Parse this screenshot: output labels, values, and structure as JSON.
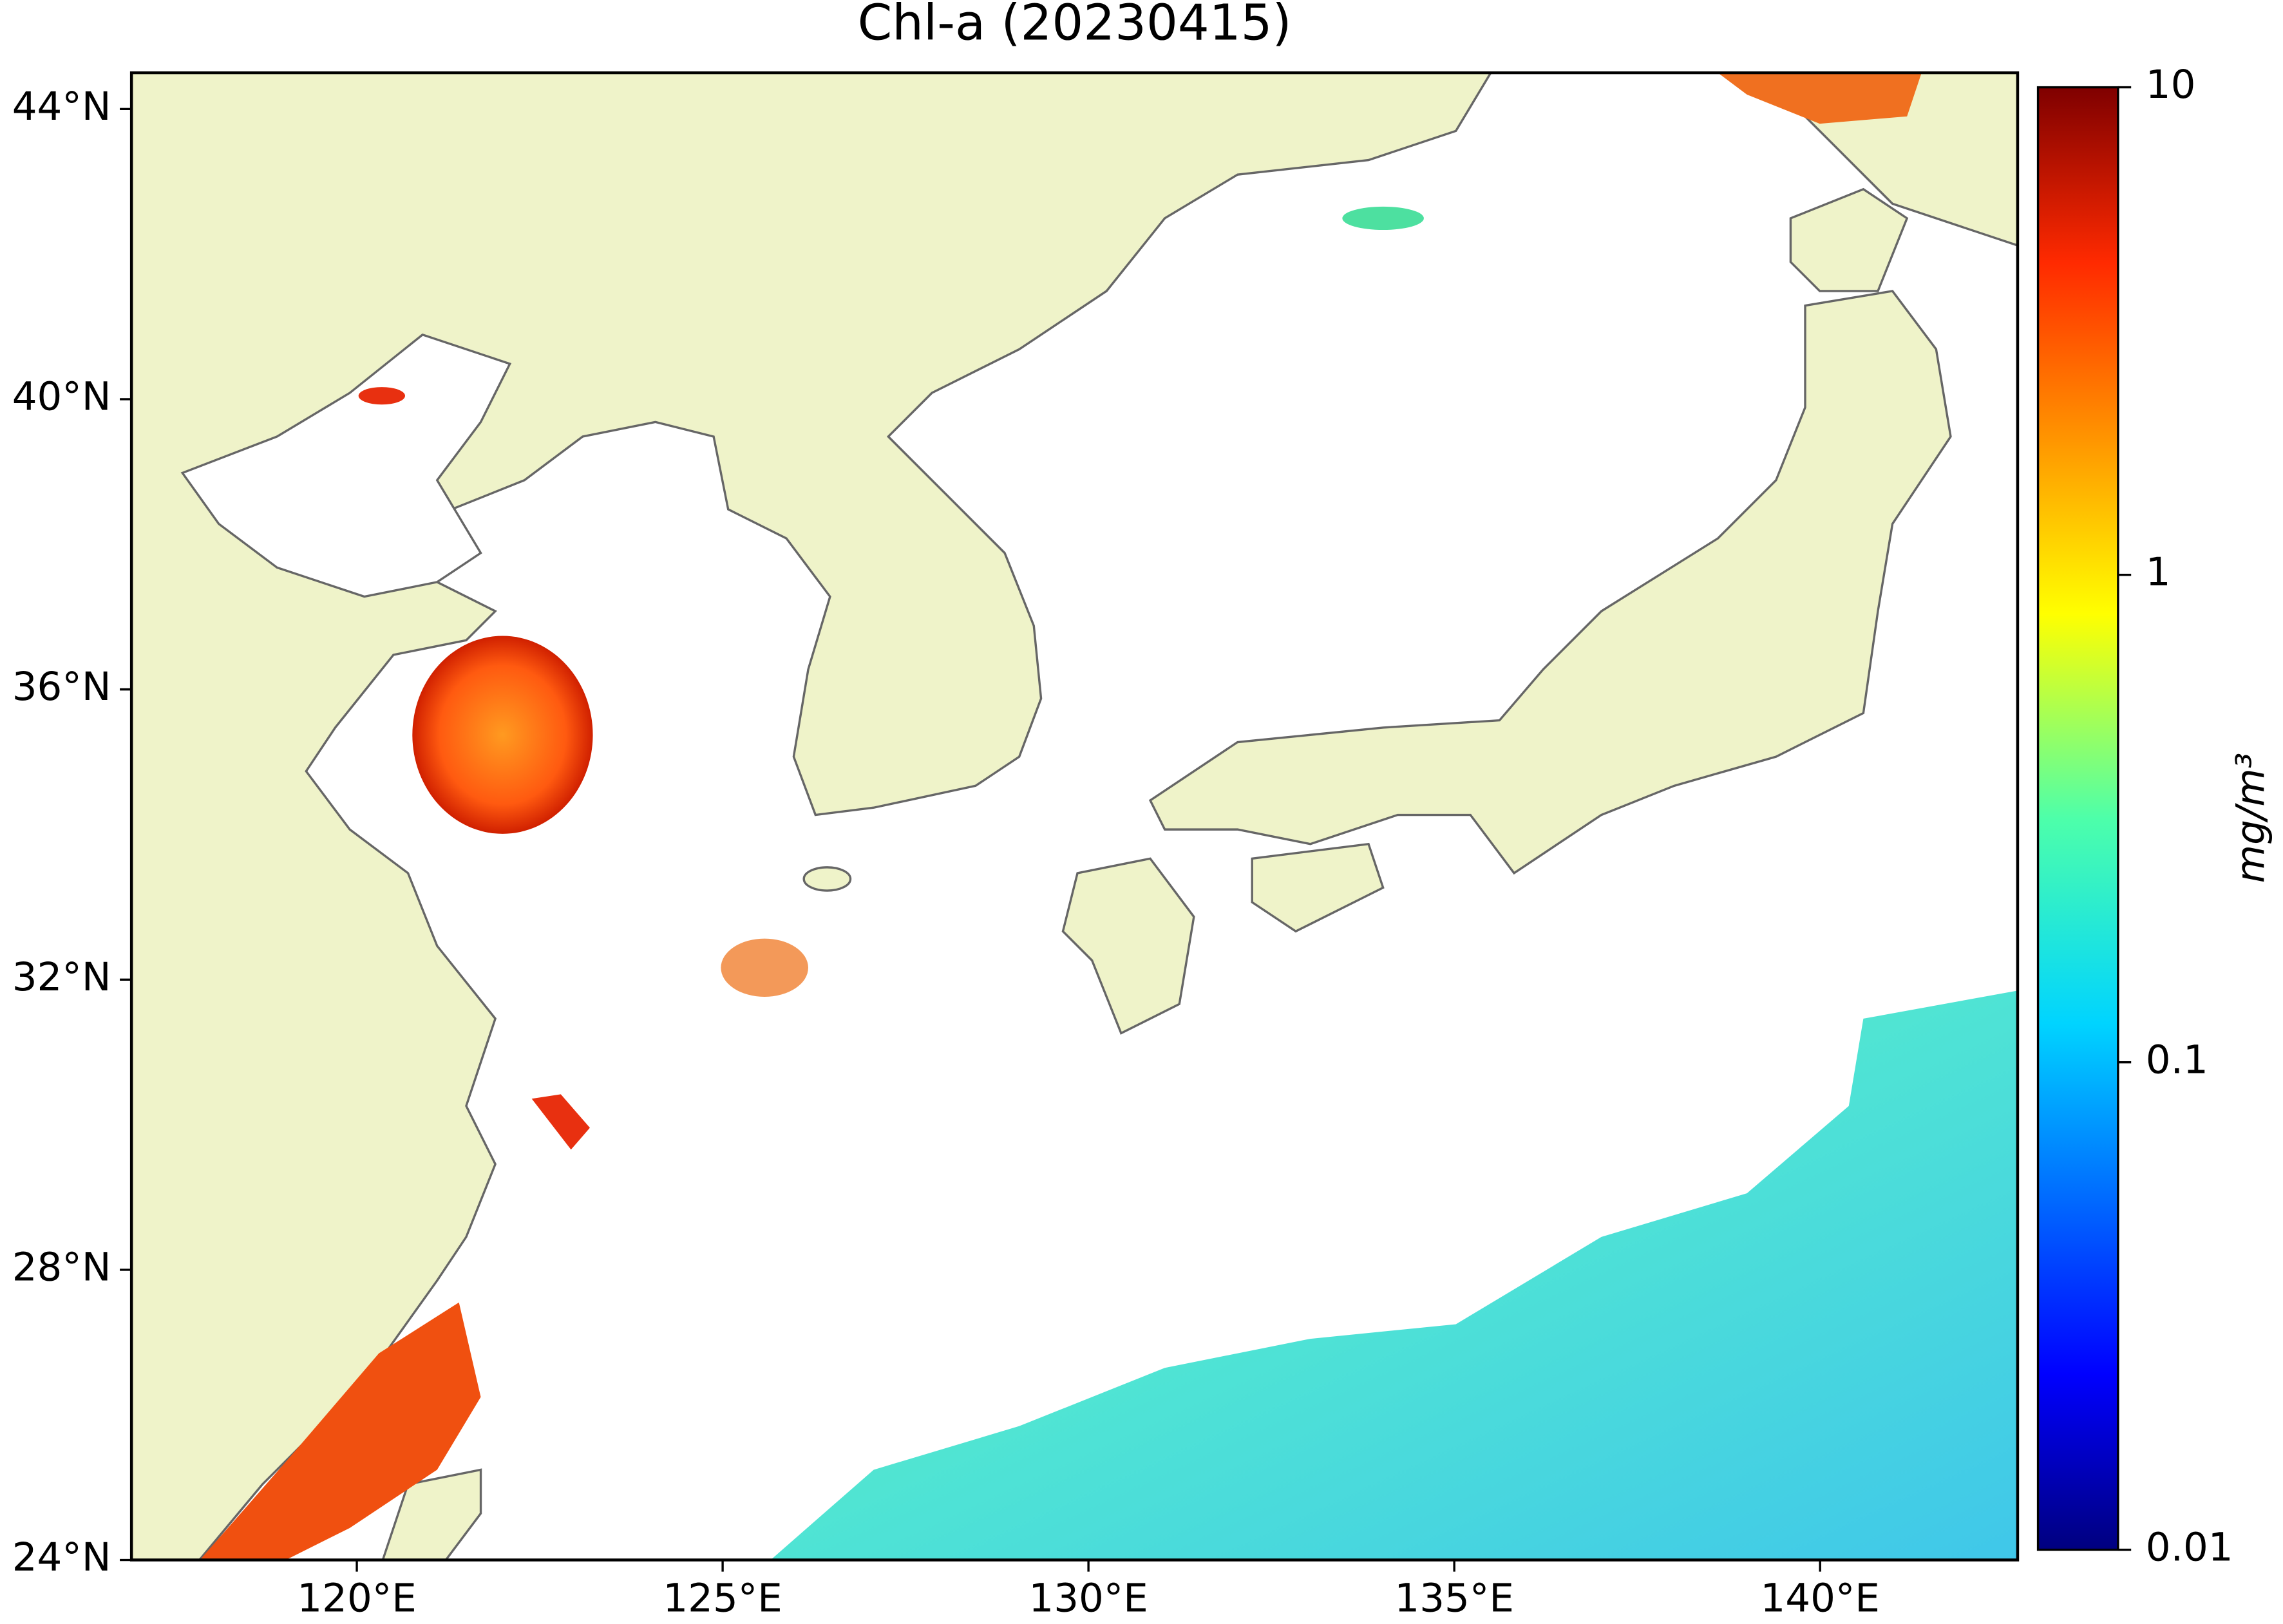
{
  "title": "Chl-a (20230415)",
  "map": {
    "lonlim": [
      116.92,
      142.7
    ],
    "latlim": [
      24,
      44.5
    ],
    "lon_ticks": [
      {
        "value": 120,
        "label": "120°E"
      },
      {
        "value": 125,
        "label": "125°E"
      },
      {
        "value": 130,
        "label": "130°E"
      },
      {
        "value": 135,
        "label": "135°E"
      },
      {
        "value": 140,
        "label": "140°E"
      }
    ],
    "lat_ticks": [
      {
        "value": 24,
        "label": "24°N"
      },
      {
        "value": 28,
        "label": "28°N"
      },
      {
        "value": 32,
        "label": "32°N"
      },
      {
        "value": 36,
        "label": "36°N"
      },
      {
        "value": 40,
        "label": "40°N"
      },
      {
        "value": 44,
        "label": "44°N"
      }
    ]
  },
  "colorbar": {
    "label": "mg/m³",
    "lim": [
      0.01,
      10
    ],
    "log": true,
    "ticks": [
      0.01,
      0.1,
      1,
      10
    ]
  }
}
